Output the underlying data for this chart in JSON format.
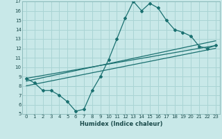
{
  "xlabel": "Humidex (Indice chaleur)",
  "xlim": [
    -0.5,
    23.5
  ],
  "ylim": [
    5,
    17
  ],
  "xticks": [
    0,
    1,
    2,
    3,
    4,
    5,
    6,
    7,
    8,
    9,
    10,
    11,
    12,
    13,
    14,
    15,
    16,
    17,
    18,
    19,
    20,
    21,
    22,
    23
  ],
  "yticks": [
    5,
    6,
    7,
    8,
    9,
    10,
    11,
    12,
    13,
    14,
    15,
    16,
    17
  ],
  "bg_color": "#c8e8e8",
  "grid_color": "#aad4d4",
  "line_color": "#1a7070",
  "s1_x": [
    0,
    1,
    2,
    3,
    4,
    5,
    6,
    7,
    8,
    9,
    10,
    11,
    12,
    13,
    14,
    15,
    16,
    17,
    18,
    19,
    20,
    21,
    22,
    23
  ],
  "s1_y": [
    8.8,
    8.3,
    7.5,
    7.5,
    7.0,
    6.3,
    5.3,
    5.5,
    7.5,
    9.0,
    10.8,
    13.0,
    15.2,
    17.0,
    16.0,
    16.8,
    16.3,
    15.0,
    14.0,
    13.7,
    13.3,
    12.2,
    12.0,
    12.3
  ],
  "line1_x": [
    0,
    23
  ],
  "line1_y": [
    8.8,
    12.3
  ],
  "line2_x": [
    0,
    23
  ],
  "line2_y": [
    8.5,
    12.8
  ],
  "line3_x": [
    0,
    23
  ],
  "line3_y": [
    8.0,
    12.0
  ]
}
